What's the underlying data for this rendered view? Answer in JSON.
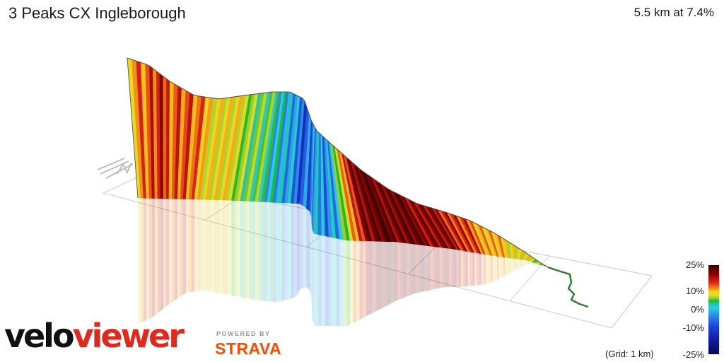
{
  "header": {
    "title": "3 Peaks CX Ingleborough",
    "stats": "5.5 km at 7.4%"
  },
  "legend": {
    "ticks": [
      "25%",
      "10%",
      "0%",
      "-10%",
      "-25%"
    ],
    "grid_note": "(Grid: 1 km)"
  },
  "branding": {
    "velo": "velo",
    "viewer": "viewer",
    "powered_by": "POWERED BY",
    "strava": "STRAVA"
  },
  "colors": {
    "strava_orange": "#fc4c02",
    "veloviewer_red": "#e2281c",
    "outline": "#555555"
  },
  "chart_data": {
    "type": "area",
    "description_free": true,
    "x_unit": "km",
    "distance_km": 5.5,
    "avg_gradient_pct": 7.4,
    "color_scale": {
      "min_pct": -25,
      "max_pct": 25,
      "ticks_pct": [
        25,
        10,
        0,
        -10,
        -25
      ]
    },
    "grid_km": 1,
    "x": [
      0,
      0.25,
      0.5,
      0.75,
      1.0,
      1.25,
      1.5,
      1.75,
      2.0,
      2.25,
      2.5,
      2.75,
      3.0,
      3.25,
      3.5,
      3.75,
      4.0,
      4.25,
      4.5,
      4.75,
      5.0,
      5.25,
      5.5
    ],
    "gradient_pct": [
      12,
      15,
      14,
      8,
      6,
      1,
      -3,
      -8,
      -6,
      -4,
      20,
      22,
      21,
      20,
      18,
      14,
      10,
      8,
      6,
      3,
      2,
      1,
      0
    ]
  }
}
